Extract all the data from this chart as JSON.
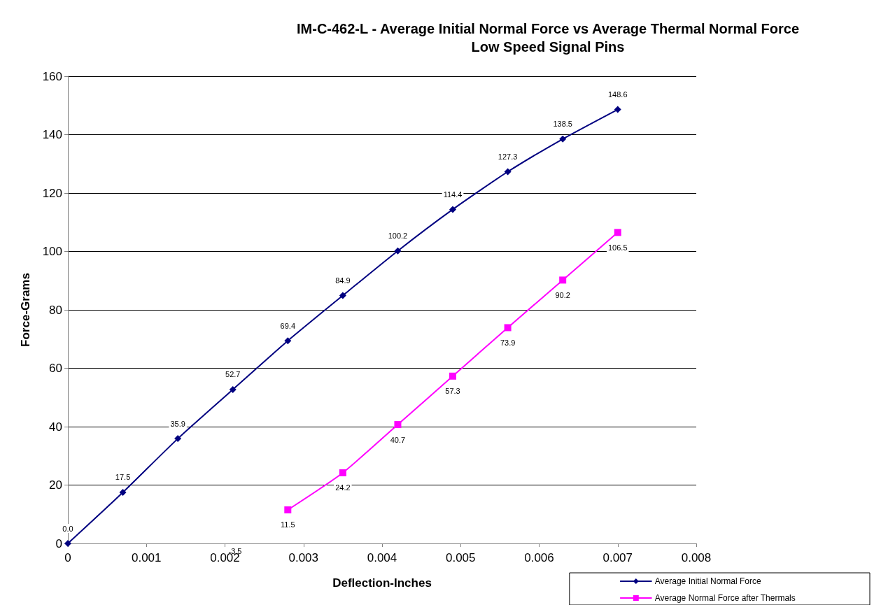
{
  "chart_data": {
    "type": "line",
    "title": "IM-C-462-L - Average Initial Normal Force vs Average Thermal Normal Force",
    "subtitle": "Low Speed Signal Pins",
    "xlabel": "Deflection-Inches",
    "ylabel": "Force-Grams",
    "xlim": [
      0,
      0.008
    ],
    "xticks": [
      0,
      0.001,
      0.002,
      0.003,
      0.004,
      0.005,
      0.006,
      0.007,
      0.008
    ],
    "ylim": [
      0,
      160
    ],
    "yticks": [
      0,
      20,
      40,
      60,
      80,
      100,
      120,
      140,
      160
    ],
    "grid": "y",
    "legend": "bottom right",
    "line_style": "solid",
    "series": [
      {
        "name": "Average Initial Normal Force",
        "color": "#000080",
        "marker": "diamond",
        "x": [
          0,
          0.0007,
          0.0014,
          0.0021,
          0.0028,
          0.0035,
          0.0042,
          0.0049,
          0.0056,
          0.0063,
          0.007
        ],
        "values": [
          0,
          17.5,
          35.9,
          52.7,
          69.4,
          84.9,
          100.2,
          114.4,
          127.3,
          138.5,
          148.6
        ],
        "value_labels": [
          "0.0",
          "17.5",
          "35.9",
          "52.7",
          "69.4",
          "84.9",
          "100.2",
          "114.4",
          "127.3",
          "138.5",
          "148.6"
        ]
      },
      {
        "name": "Average Normal Force after Thermals",
        "color": "#ff00ff",
        "marker": "square",
        "x": [
          0.0028,
          0.0035,
          0.0042,
          0.0049,
          0.0056,
          0.0063,
          0.007
        ],
        "values": [
          11.5,
          24.2,
          40.7,
          57.3,
          73.9,
          90.2,
          106.5
        ],
        "value_labels": [
          "11.5",
          "24.2",
          "40.7",
          "57.3",
          "73.9",
          "90.2",
          "106.5"
        ]
      }
    ],
    "annotations": [
      "-3.5"
    ]
  }
}
